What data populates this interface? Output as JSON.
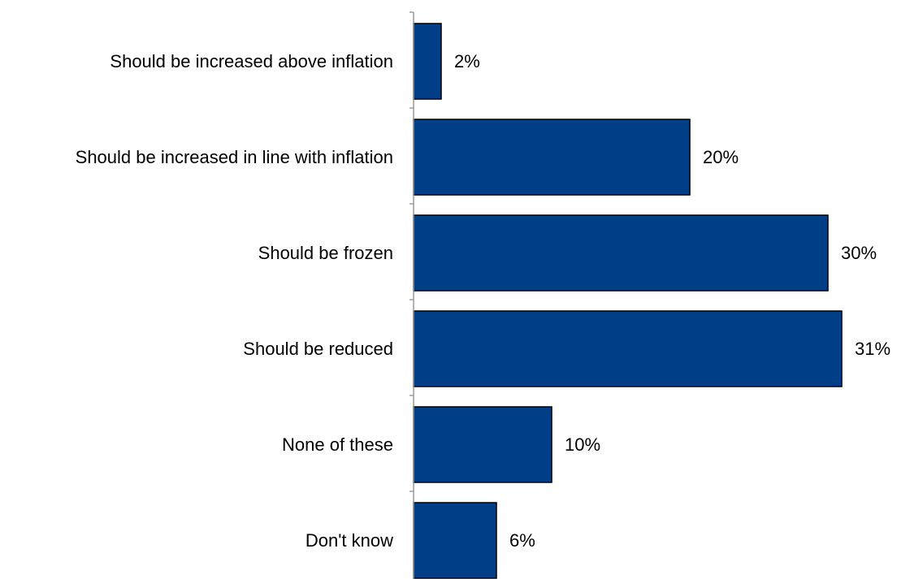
{
  "chart_data": {
    "type": "bar",
    "orientation": "horizontal",
    "title": "",
    "xlabel": "",
    "ylabel": "",
    "categories": [
      "Should be increased above inflation",
      "Should be increased in line with inflation",
      "Should be frozen",
      "Should be reduced",
      "None of these",
      "Don't know"
    ],
    "values": [
      2,
      20,
      30,
      31,
      10,
      6
    ],
    "value_labels": [
      "2%",
      "20%",
      "30%",
      "31%",
      "10%",
      "6%"
    ],
    "unit": "%",
    "xlim": [
      0,
      31
    ],
    "grid": false,
    "legend": "none",
    "colors": {
      "bar_fill": "#003F87",
      "bar_stroke": "#000000",
      "axis": "#9a9a9a",
      "text": "#000000"
    }
  }
}
